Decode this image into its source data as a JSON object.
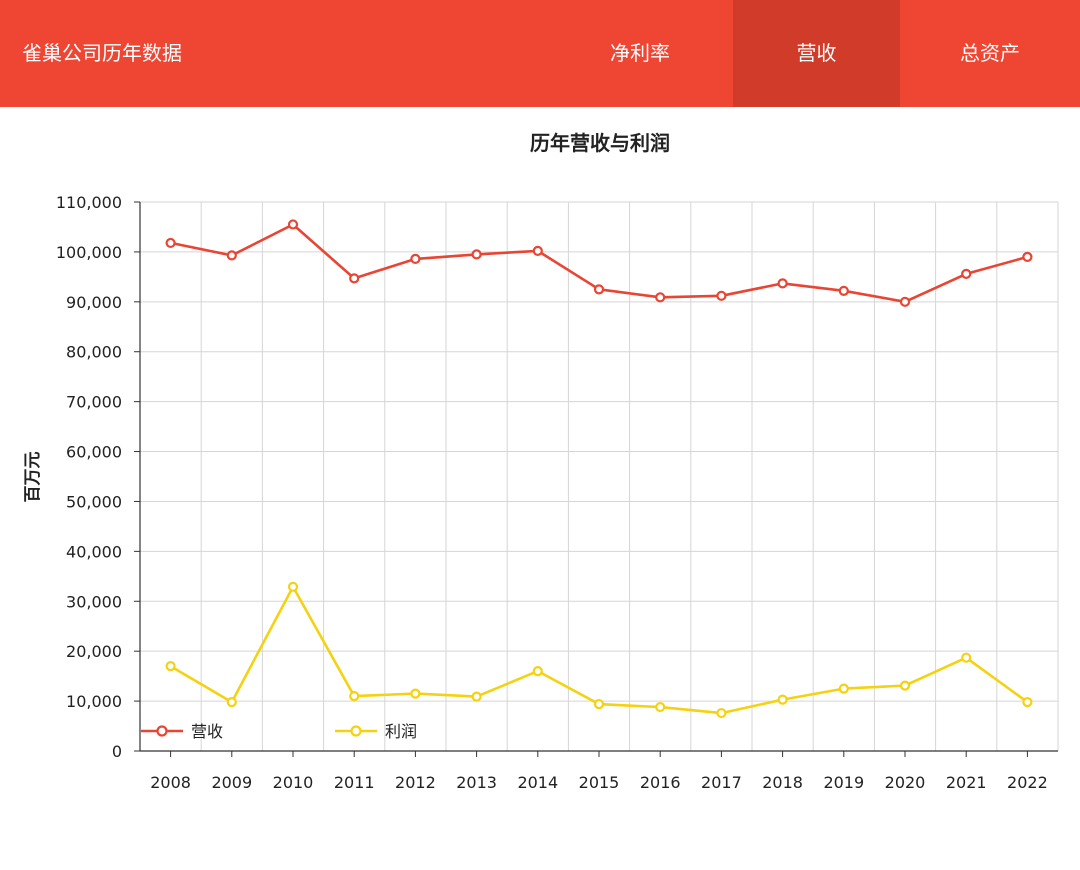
{
  "header": {
    "title": "雀巢公司历年数据",
    "tabs": [
      {
        "label": "净利率",
        "active": false
      },
      {
        "label": "营收",
        "active": true
      },
      {
        "label": "总资产",
        "active": false
      }
    ]
  },
  "colors": {
    "header_bg": "#ef4533",
    "active_tab_bg": "#d13b29",
    "revenue": "#e84534",
    "profit": "#f5d210"
  },
  "chart_data": {
    "type": "line",
    "title": "历年营收与利润",
    "ylabel": "百万元",
    "xlabel": "",
    "ylim": [
      0,
      110000
    ],
    "ytick_step": 10000,
    "y_ticks": [
      "0",
      "10,000",
      "20,000",
      "30,000",
      "40,000",
      "50,000",
      "60,000",
      "70,000",
      "80,000",
      "90,000",
      "100,000",
      "110,000"
    ],
    "categories": [
      "2008",
      "2009",
      "2010",
      "2011",
      "2012",
      "2013",
      "2014",
      "2015",
      "2016",
      "2017",
      "2018",
      "2019",
      "2020",
      "2021",
      "2022"
    ],
    "grid": true,
    "legend_position": "bottom-left",
    "series": [
      {
        "name": "营收",
        "color": "#e84534",
        "values": [
          101800,
          99300,
          105500,
          94700,
          98600,
          99500,
          100200,
          92500,
          90900,
          91200,
          93700,
          92200,
          90000,
          95600,
          99000
        ]
      },
      {
        "name": "利润",
        "color": "#f5d210",
        "values": [
          17000,
          9800,
          32900,
          11000,
          11500,
          10900,
          16000,
          9400,
          8800,
          7600,
          10300,
          12500,
          13100,
          18700,
          9800
        ]
      }
    ]
  }
}
